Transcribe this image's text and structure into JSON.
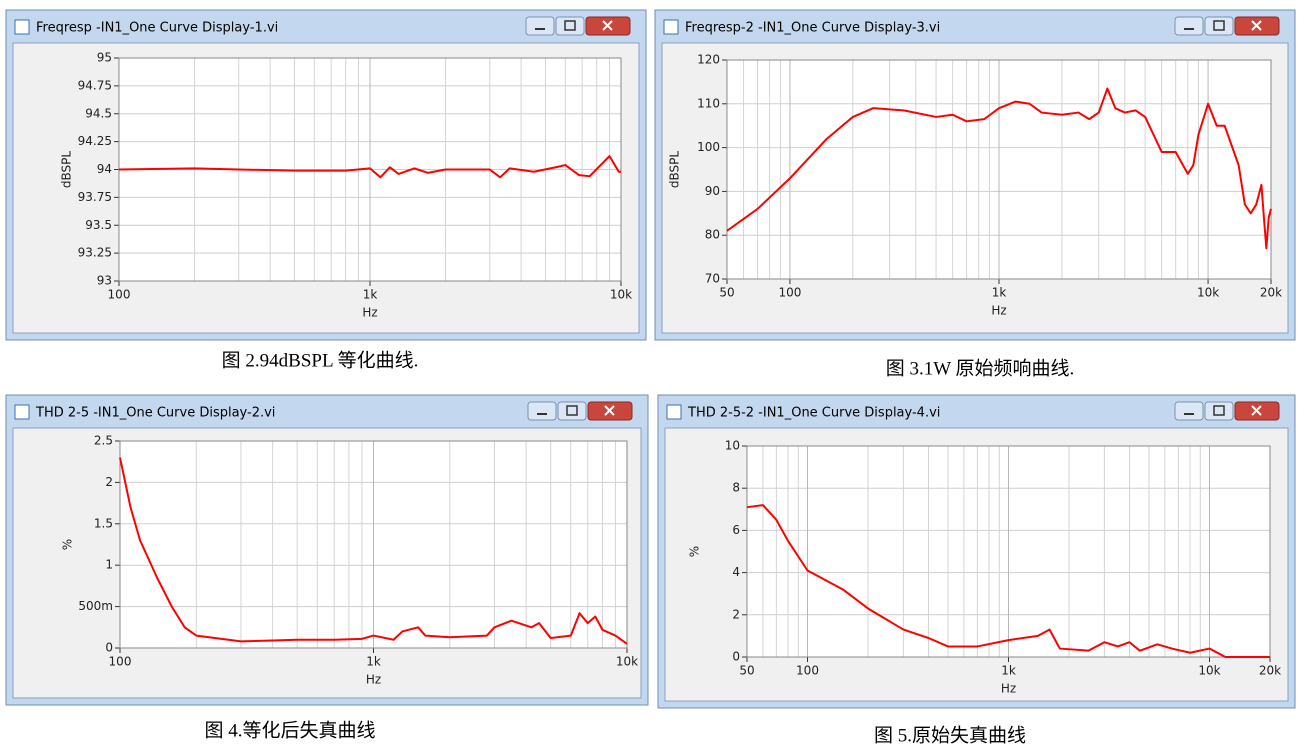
{
  "chart_data": [
    {
      "type": "line",
      "title": "Freqresp -IN1_One Curve Display-1.vi",
      "caption": "图 2.94dBSPL 等化曲线.",
      "xlabel": "Hz",
      "ylabel": "dBSPL",
      "log_x": true,
      "grid": true,
      "minor_grid": true,
      "color": "#ff0000",
      "x": [
        100,
        200,
        300,
        500,
        800,
        1000,
        1100,
        1200,
        1300,
        1500,
        1700,
        2000,
        3000,
        3300,
        3600,
        4500,
        5500,
        6000,
        6800,
        7500,
        9000,
        9800,
        10000
      ],
      "values": [
        94.0,
        94.01,
        94.0,
        93.99,
        93.99,
        94.01,
        93.93,
        94.02,
        93.96,
        94.01,
        93.97,
        94.0,
        94.0,
        93.93,
        94.01,
        93.98,
        94.02,
        94.04,
        93.95,
        93.94,
        94.12,
        93.98,
        93.98
      ],
      "xlim": [
        100,
        10000
      ],
      "xticks": [
        100,
        {
          "value": 1000,
          "label": "1k"
        },
        {
          "value": 10000,
          "label": "10k"
        }
      ],
      "ylim": [
        93,
        95
      ],
      "yticks": [
        93,
        93.25,
        93.5,
        93.75,
        94,
        94.25,
        94.5,
        94.75,
        95
      ]
    },
    {
      "type": "line",
      "title": "Freqresp-2 -IN1_One Curve Display-3.vi",
      "caption": "图 3.1W 原始频响曲线.",
      "xlabel": "Hz",
      "ylabel": "dBSPL",
      "log_x": true,
      "grid": true,
      "minor_grid": true,
      "color": "#ff0000",
      "x": [
        50,
        70,
        100,
        150,
        200,
        250,
        350,
        500,
        600,
        700,
        850,
        1000,
        1200,
        1400,
        1600,
        2000,
        2400,
        2700,
        3000,
        3300,
        3600,
        4000,
        4500,
        5000,
        6000,
        7000,
        8000,
        8500,
        9000,
        10000,
        11000,
        12000,
        14000,
        15000,
        16000,
        17000,
        18000,
        18500,
        19000,
        19500,
        20000
      ],
      "values": [
        81,
        86,
        93,
        102,
        107,
        109,
        108.5,
        107,
        107.5,
        106,
        106.5,
        109,
        110.5,
        110,
        108,
        107.5,
        108,
        106.5,
        108,
        113.5,
        109,
        108,
        108.5,
        107,
        99,
        99,
        94,
        96,
        103,
        110,
        105,
        105,
        96,
        87,
        85,
        87,
        91.5,
        84,
        77,
        84,
        86
      ],
      "xlim": [
        50,
        20000
      ],
      "xticks": [
        50,
        100,
        {
          "value": 1000,
          "label": "1k"
        },
        {
          "value": 10000,
          "label": "10k"
        },
        {
          "value": 20000,
          "label": "20k"
        }
      ],
      "ylim": [
        70,
        120
      ],
      "yticks": [
        70,
        80,
        90,
        100,
        110,
        120
      ]
    },
    {
      "type": "line",
      "title": "THD 2-5 -IN1_One Curve Display-2.vi",
      "caption": "图 4.等化后失真曲线",
      "xlabel": "Hz",
      "ylabel": "%",
      "log_x": true,
      "grid": true,
      "minor_grid": true,
      "color": "#ff0000",
      "x": [
        100,
        110,
        120,
        140,
        160,
        180,
        200,
        300,
        400,
        500,
        700,
        900,
        1000,
        1200,
        1300,
        1500,
        1600,
        2000,
        2800,
        3000,
        3500,
        4200,
        4500,
        5000,
        6000,
        6500,
        7000,
        7500,
        8000,
        9000,
        10000
      ],
      "values": [
        2.3,
        1.7,
        1.3,
        0.85,
        0.5,
        0.25,
        0.15,
        0.08,
        0.09,
        0.1,
        0.1,
        0.11,
        0.15,
        0.1,
        0.2,
        0.25,
        0.15,
        0.13,
        0.15,
        0.25,
        0.33,
        0.25,
        0.3,
        0.12,
        0.15,
        0.42,
        0.3,
        0.38,
        0.22,
        0.15,
        0.05
      ],
      "xlim": [
        100,
        10000
      ],
      "xticks": [
        100,
        {
          "value": 1000,
          "label": "1k"
        },
        {
          "value": 10000,
          "label": "10k"
        }
      ],
      "ylim": [
        0,
        2.5
      ],
      "yticks": [
        0,
        {
          "value": 0.5,
          "label": "500m"
        },
        1,
        1.5,
        2,
        2.5
      ]
    },
    {
      "type": "line",
      "title": "THD 2-5-2 -IN1_One Curve Display-4.vi",
      "caption": "图 5.原始失真曲线",
      "xlabel": "Hz",
      "ylabel": "%",
      "log_x": true,
      "grid": true,
      "minor_grid": true,
      "color": "#ff0000",
      "x": [
        50,
        60,
        70,
        80,
        100,
        150,
        200,
        300,
        400,
        500,
        700,
        1000,
        1400,
        1600,
        1800,
        2500,
        3000,
        3500,
        4000,
        4500,
        5500,
        6500,
        8000,
        10000,
        12000,
        20000
      ],
      "values": [
        7.1,
        7.2,
        6.5,
        5.5,
        4.1,
        3.2,
        2.3,
        1.3,
        0.9,
        0.5,
        0.5,
        0.8,
        1.0,
        1.3,
        0.4,
        0.3,
        0.7,
        0.5,
        0.7,
        0.3,
        0.6,
        0.4,
        0.2,
        0.4,
        0.0,
        0.0
      ],
      "xlim": [
        50,
        20000
      ],
      "xticks": [
        50,
        100,
        {
          "value": 1000,
          "label": "1k"
        },
        {
          "value": 10000,
          "label": "10k"
        },
        {
          "value": 20000,
          "label": "20k"
        }
      ],
      "ylim": [
        0,
        10
      ],
      "yticks": [
        0,
        2,
        4,
        6,
        8,
        10
      ]
    }
  ]
}
